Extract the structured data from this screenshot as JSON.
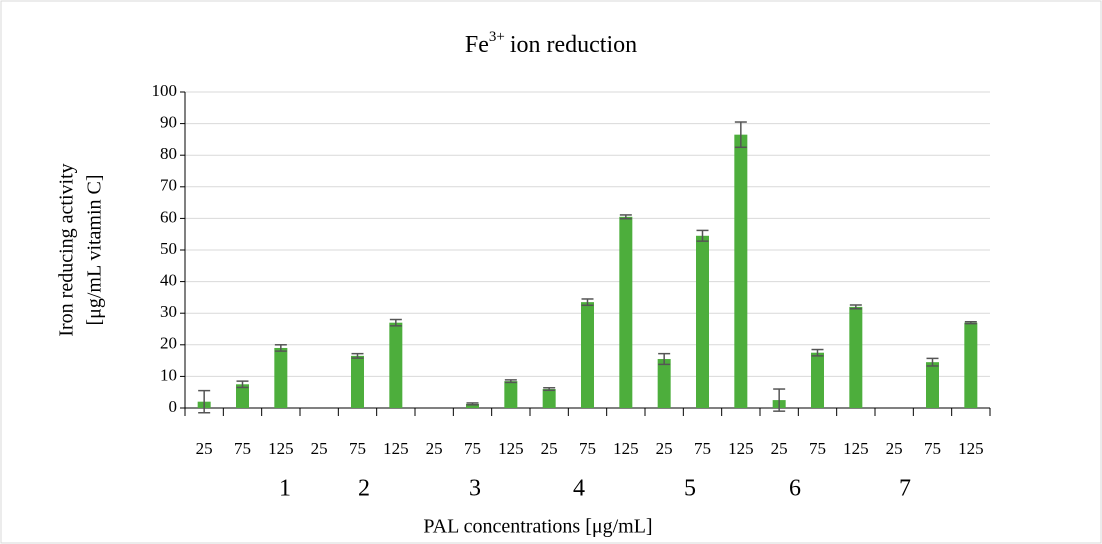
{
  "chart_data": {
    "type": "bar",
    "title": "Fe",
    "title_superscript": "3+",
    "title_rest": "ion reduction",
    "y_label_lines": [
      "Iron reducing activity",
      "[μg/mL vitamin C]"
    ],
    "x_label": "PAL concentrations [μg/mL]",
    "categories": [
      "25",
      "75",
      "125",
      "25",
      "75",
      "125",
      "25",
      "75",
      "125",
      "25",
      "75",
      "125",
      "25",
      "75",
      "125",
      "25",
      "75",
      "125",
      "25",
      "75",
      "125"
    ],
    "groups": [
      "1",
      "2",
      "3",
      "4",
      "5",
      "6",
      "7"
    ],
    "values": [
      2,
      7.5,
      19,
      0,
      16.5,
      27,
      0,
      1.3,
      8.5,
      6,
      33.5,
      60.5,
      15.5,
      54.5,
      86.5,
      2.5,
      17.5,
      32,
      0,
      14.5,
      27
    ],
    "errors": [
      3.5,
      1,
      1,
      null,
      0.7,
      1,
      null,
      0.3,
      0.4,
      0.4,
      1,
      0.6,
      1.7,
      1.7,
      4,
      3.5,
      1,
      0.6,
      null,
      1.2,
      0.3
    ],
    "color": "#4dae3c",
    "ylim": [
      0,
      100
    ],
    "yticks": [
      0,
      10,
      20,
      30,
      40,
      50,
      60,
      70,
      80,
      90,
      100
    ],
    "grid": true
  }
}
